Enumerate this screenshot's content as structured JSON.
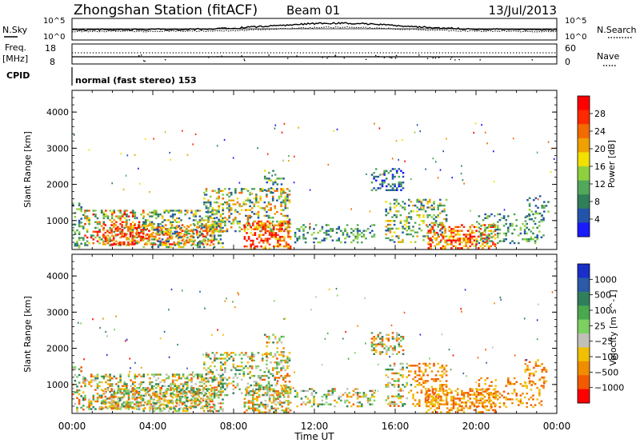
{
  "header": {
    "station": "Zhongshan Station (fitACF)",
    "beam": "Beam 01",
    "date": "13/Jul/2013"
  },
  "params": {
    "left_label_top": "N.Sky",
    "left_top_ticks": [
      "10^5",
      "10^0"
    ],
    "right_label_top": "N.Search",
    "right_top_ticks": [
      "10^5",
      "10^0"
    ],
    "left_label_mid_1": "Freq.",
    "left_label_mid_2": "[MHz]",
    "left_mid_ticks": [
      "18",
      "8"
    ],
    "right_label_mid": "Nave",
    "right_mid_ticks": [
      "60",
      "0"
    ],
    "cpid_label": "CPID",
    "cpid_text": "normal (fast stereo) 153"
  },
  "colors": {
    "power_scale": [
      "#1a1aff",
      "#2255aa",
      "#2e7f5a",
      "#52a85a",
      "#8fd040",
      "#f2e000",
      "#f0a000",
      "#f26a00",
      "#ff2a00",
      "#ff0000"
    ],
    "velocity_scale": [
      "#1a2ec8",
      "#2a5aa8",
      "#2f7f5c",
      "#4aa84e",
      "#7cd060",
      "#c0c0b8",
      "#f0c000",
      "#f08c00",
      "#f25a00",
      "#ff0000"
    ]
  },
  "chart_data": [
    {
      "type": "heatmap",
      "title": "Power",
      "xlabel": "Time UT",
      "ylabel": "Slant Range [km]",
      "x_ticks": [
        "00:00",
        "04:00",
        "08:00",
        "12:00",
        "16:00",
        "20:00",
        "00:00"
      ],
      "y_ticks": [
        "1000",
        "2000",
        "3000",
        "4000"
      ],
      "ylim": [
        200,
        4600
      ],
      "colorbar_label": "Power [dB]",
      "colorbar_ticks": [
        "4",
        "8",
        "12",
        "16",
        "20",
        "24",
        "28"
      ]
    },
    {
      "type": "heatmap",
      "title": "Velocity",
      "xlabel": "Time UT",
      "ylabel": "Slant Range [km]",
      "x_ticks": [
        "00:00",
        "04:00",
        "08:00",
        "12:00",
        "16:00",
        "20:00",
        "00:00"
      ],
      "y_ticks": [
        "1000",
        "2000",
        "3000",
        "4000"
      ],
      "ylim": [
        200,
        4600
      ],
      "colorbar_label": "Velocity [m s^-1]",
      "colorbar_ticks": [
        "1000",
        "500",
        "100",
        "25",
        "−25",
        "−100",
        "−500",
        "−1000"
      ]
    }
  ]
}
